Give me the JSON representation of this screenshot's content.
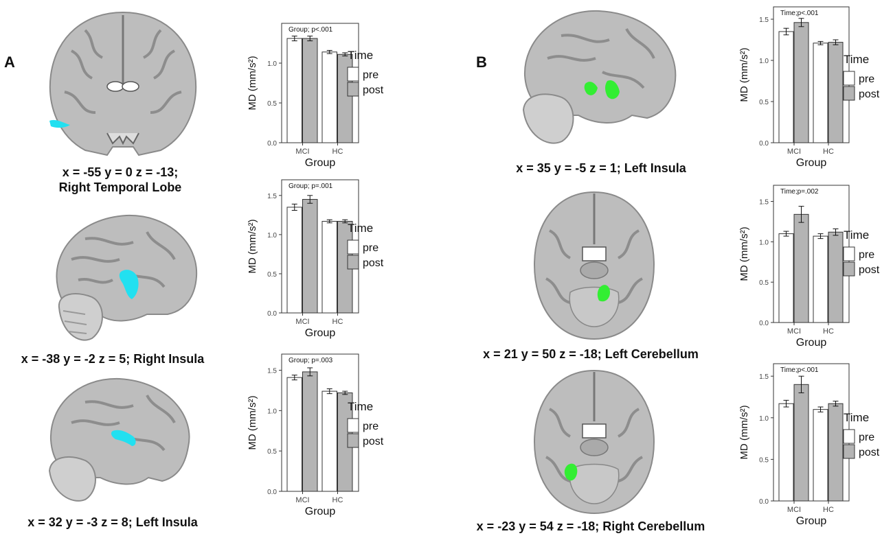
{
  "panel_labels": [
    "A",
    "B"
  ],
  "brains": [
    {
      "id": "a1",
      "caption_line1": "x = -55  y = 0  z = -13;",
      "caption_line2": "Right Temporal Lobe",
      "view": "coronal",
      "blob_color": "#22e0f0"
    },
    {
      "id": "a2",
      "caption_line1": "x = -38  y = -2  z = 5; Right Insula",
      "caption_line2": "",
      "view": "sagittal",
      "blob_color": "#22e0f0"
    },
    {
      "id": "a3",
      "caption_line1": "x = 32  y = -3  z = 8; Left Insula",
      "caption_line2": "",
      "view": "sagittal",
      "blob_color": "#22e0f0"
    },
    {
      "id": "b1",
      "caption_line1": "x = 35  y = -5  z = 1; Left Insula",
      "caption_line2": "",
      "view": "sagittal",
      "blob_color": "#33ee33"
    },
    {
      "id": "b2",
      "caption_line1": "x = 21  y = 50 z = -18; Left Cerebellum",
      "caption_line2": "",
      "view": "axial",
      "blob_color": "#33ee33"
    },
    {
      "id": "b3",
      "caption_line1": "x = -23  y = 54  z = -18; Right Cerebellum",
      "caption_line2": "",
      "view": "axial",
      "blob_color": "#33ee33"
    }
  ],
  "chart_data": [
    {
      "type": "bar",
      "annotation": "Group; p<.001",
      "categories": [
        "MCI",
        "HC"
      ],
      "xlabel": "Group",
      "ylabel": "MD (mm/s²)",
      "ylim": [
        0,
        1.5
      ],
      "yticks": [
        "0.0",
        "0.5",
        "1.0"
      ],
      "yticks_values": [
        0,
        0.5,
        1.0
      ],
      "legend_title": "Time",
      "series": [
        {
          "name": "pre",
          "color": "#ffffff",
          "values": [
            1.31,
            1.14
          ],
          "err": [
            0.03,
            0.02
          ]
        },
        {
          "name": "post",
          "color": "#b4b4b4",
          "values": [
            1.31,
            1.11
          ],
          "err": [
            0.03,
            0.02
          ]
        }
      ]
    },
    {
      "type": "bar",
      "annotation": "Group; p=.001",
      "categories": [
        "MCI",
        "HC"
      ],
      "xlabel": "Group",
      "ylabel": "MD (mm/s²)",
      "ylim": [
        0,
        1.7
      ],
      "yticks": [
        "0.0",
        "0.5",
        "1.0",
        "1.5"
      ],
      "yticks_values": [
        0,
        0.5,
        1.0,
        1.5
      ],
      "legend_title": "Time",
      "series": [
        {
          "name": "pre",
          "color": "#ffffff",
          "values": [
            1.35,
            1.17
          ],
          "err": [
            0.04,
            0.02
          ]
        },
        {
          "name": "post",
          "color": "#b4b4b4",
          "values": [
            1.45,
            1.17
          ],
          "err": [
            0.05,
            0.02
          ]
        }
      ]
    },
    {
      "type": "bar",
      "annotation": "Group; p=.003",
      "categories": [
        "MCI",
        "HC"
      ],
      "xlabel": "Group",
      "ylabel": "MD (mm/s²)",
      "ylim": [
        0,
        1.7
      ],
      "yticks": [
        "0.0",
        "0.5",
        "1.0",
        "1.5"
      ],
      "yticks_values": [
        0,
        0.5,
        1.0,
        1.5
      ],
      "legend_title": "Time",
      "series": [
        {
          "name": "pre",
          "color": "#ffffff",
          "values": [
            1.41,
            1.24
          ],
          "err": [
            0.03,
            0.03
          ]
        },
        {
          "name": "post",
          "color": "#b4b4b4",
          "values": [
            1.48,
            1.22
          ],
          "err": [
            0.05,
            0.02
          ]
        }
      ]
    },
    {
      "type": "bar",
      "annotation": "Time;p<.001",
      "categories": [
        "MCI",
        "HC"
      ],
      "xlabel": "Group",
      "ylabel": "MD (mm/s²)",
      "ylim": [
        0,
        1.65
      ],
      "yticks": [
        "0.0",
        "0.5",
        "1.0",
        "1.5"
      ],
      "yticks_values": [
        0,
        0.5,
        1.0,
        1.5
      ],
      "legend_title": "Time",
      "series": [
        {
          "name": "pre",
          "color": "#ffffff",
          "values": [
            1.35,
            1.21
          ],
          "err": [
            0.04,
            0.02
          ]
        },
        {
          "name": "post",
          "color": "#b4b4b4",
          "values": [
            1.46,
            1.22
          ],
          "err": [
            0.05,
            0.03
          ]
        }
      ]
    },
    {
      "type": "bar",
      "annotation": "Time;p=.002",
      "categories": [
        "MCI",
        "HC"
      ],
      "xlabel": "Group",
      "ylabel": "MD (mm/s²)",
      "ylim": [
        0,
        1.7
      ],
      "yticks": [
        "0.0",
        "0.5",
        "1.0",
        "1.5"
      ],
      "yticks_values": [
        0,
        0.5,
        1.0,
        1.5
      ],
      "legend_title": "Time",
      "series": [
        {
          "name": "pre",
          "color": "#ffffff",
          "values": [
            1.1,
            1.07
          ],
          "err": [
            0.03,
            0.03
          ]
        },
        {
          "name": "post",
          "color": "#b4b4b4",
          "values": [
            1.34,
            1.12
          ],
          "err": [
            0.1,
            0.04
          ]
        }
      ]
    },
    {
      "type": "bar",
      "annotation": "Time;p<.001",
      "categories": [
        "MCI",
        "HC"
      ],
      "xlabel": "Group",
      "ylabel": "MD (mm/s²)",
      "ylim": [
        0,
        1.65
      ],
      "yticks": [
        "0.0",
        "0.5",
        "1.0",
        "1.5"
      ],
      "yticks_values": [
        0,
        0.5,
        1.0,
        1.5
      ],
      "legend_title": "Time",
      "series": [
        {
          "name": "pre",
          "color": "#ffffff",
          "values": [
            1.17,
            1.1
          ],
          "err": [
            0.04,
            0.03
          ]
        },
        {
          "name": "post",
          "color": "#b4b4b4",
          "values": [
            1.4,
            1.17
          ],
          "err": [
            0.1,
            0.03
          ]
        }
      ]
    }
  ]
}
